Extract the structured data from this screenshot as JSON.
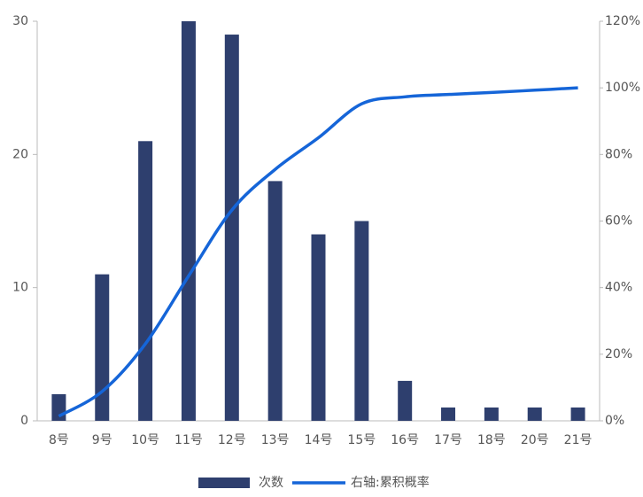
{
  "chart_data": {
    "type": "bar_line",
    "categories": [
      "8号",
      "9号",
      "10号",
      "11号",
      "12号",
      "13号",
      "14号",
      "15号",
      "16号",
      "17号",
      "18号",
      "20号",
      "21号"
    ],
    "series": [
      {
        "name": "次数",
        "color": "#2e3f6e",
        "type": "bar",
        "values": [
          2,
          11,
          21,
          30,
          29,
          18,
          14,
          15,
          3,
          1,
          1,
          1,
          1
        ]
      },
      {
        "name": "右轴:累积概率",
        "color": "#1565d8",
        "type": "line",
        "axis": "y2",
        "values": [
          1.4,
          8.8,
          23.1,
          43.5,
          63.3,
          75.5,
          85.0,
          95.2,
          97.3,
          98.0,
          98.6,
          99.3,
          100
        ]
      }
    ],
    "ylim": [
      0,
      30
    ],
    "yticks": [
      0,
      10,
      20,
      30
    ],
    "y2lim": [
      0,
      120
    ],
    "y2ticks": [
      {
        "value": 0,
        "label": "0%"
      },
      {
        "value": 20,
        "label": "20%"
      },
      {
        "value": 40,
        "label": "40%"
      },
      {
        "value": 60,
        "label": "60%"
      },
      {
        "value": 80,
        "label": "80%"
      },
      {
        "value": 100,
        "label": "100%"
      },
      {
        "value": 120,
        "label": "120%"
      }
    ]
  }
}
